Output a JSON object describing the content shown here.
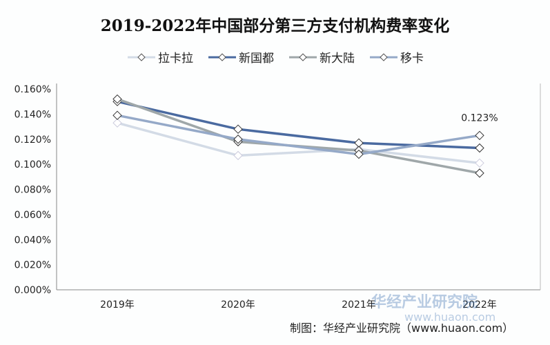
{
  "chart_data": {
    "type": "line",
    "title": "2019-2022年中国部分第三方支付机构费率变化",
    "categories": [
      "2019年",
      "2020年",
      "2021年",
      "2022年"
    ],
    "ylim": [
      0,
      0.16
    ],
    "yticks": [
      "0.000%",
      "0.020%",
      "0.040%",
      "0.060%",
      "0.080%",
      "0.100%",
      "0.120%",
      "0.140%",
      "0.160%"
    ],
    "legend_position": "top",
    "grid": false,
    "series": [
      {
        "name": "拉卡拉",
        "color": "#d3dbe6",
        "values": [
          0.133,
          0.107,
          0.112,
          0.101
        ]
      },
      {
        "name": "新国都",
        "color": "#4a6aa0",
        "values": [
          0.15,
          0.128,
          0.117,
          0.113
        ]
      },
      {
        "name": "新大陆",
        "color": "#9fa7a9",
        "values": [
          0.152,
          0.118,
          0.111,
          0.093
        ]
      },
      {
        "name": "移卡",
        "color": "#95a9c8",
        "values": [
          0.139,
          0.12,
          0.108,
          0.123
        ]
      }
    ],
    "annotation": "0.123%"
  },
  "footer": "制图：华经产业研究院（www.huaon.com）",
  "watermark": {
    "name": "华经产业研究院",
    "url": "www.huaon.com"
  }
}
